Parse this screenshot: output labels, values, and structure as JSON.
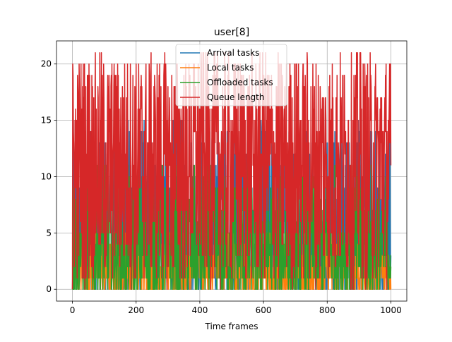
{
  "chart_data": {
    "type": "line",
    "title": "user[8]",
    "xlabel": "Time frames",
    "ylabel": "",
    "xlim": [
      -50,
      1050
    ],
    "ylim": [
      -1.05,
      22.05
    ],
    "x_ticks": [
      0,
      200,
      400,
      600,
      800,
      1000
    ],
    "y_ticks": [
      0,
      5,
      10,
      15,
      20
    ],
    "grid": true,
    "legend_position": "top-center",
    "x_range": [
      0,
      1000
    ],
    "series": [
      {
        "name": "Arrival tasks",
        "color": "#1f77b4",
        "typical_range": [
          0,
          15
        ]
      },
      {
        "name": "Local tasks",
        "color": "#ff7f0e",
        "typical_range": [
          0,
          5
        ]
      },
      {
        "name": "Offloaded tasks",
        "color": "#2ca02c",
        "typical_range": [
          0,
          11
        ]
      },
      {
        "name": "Queue length",
        "color": "#d62728",
        "typical_range": [
          0,
          21
        ],
        "peaks": [
          [
            52,
            20
          ],
          [
            383,
            20
          ],
          [
            905,
            21
          ]
        ]
      }
    ]
  }
}
